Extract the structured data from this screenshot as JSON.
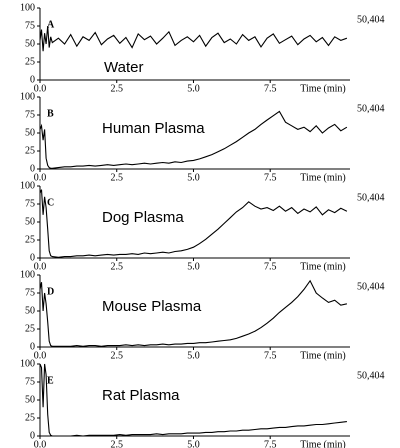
{
  "chart_data": [
    {
      "type": "line",
      "panel": "A",
      "title": "Water",
      "annotation": "50,404",
      "xlabel": "Time (min)",
      "color": "#000000",
      "xlim": [
        0,
        10.1
      ],
      "ylim": [
        0,
        100
      ],
      "yticks": [
        0,
        25,
        50,
        75,
        100
      ],
      "xticks": [
        {
          "value": 0,
          "label": "0.0"
        },
        {
          "value": 2.5,
          "label": "2.5"
        },
        {
          "value": 5,
          "label": "5.0"
        },
        {
          "value": 7.5,
          "label": "7.5"
        }
      ],
      "x": [
        0,
        0.05,
        0.1,
        0.15,
        0.2,
        0.25,
        0.3,
        0.35,
        0.4,
        0.6,
        0.8,
        1.0,
        1.2,
        1.4,
        1.6,
        1.8,
        2.0,
        2.2,
        2.4,
        2.6,
        2.8,
        3.0,
        3.2,
        3.4,
        3.6,
        3.8,
        4.0,
        4.2,
        4.4,
        4.6,
        4.8,
        5.0,
        5.2,
        5.4,
        5.6,
        5.8,
        6.0,
        6.2,
        6.4,
        6.6,
        6.8,
        7.0,
        7.2,
        7.4,
        7.6,
        7.8,
        8.0,
        8.2,
        8.4,
        8.6,
        8.8,
        9.0,
        9.2,
        9.4,
        9.6,
        9.8,
        10.0
      ],
      "values": [
        55,
        70,
        40,
        65,
        50,
        75,
        45,
        60,
        52,
        58,
        50,
        63,
        47,
        60,
        55,
        66,
        49,
        57,
        62,
        51,
        59,
        45,
        64,
        56,
        61,
        50,
        58,
        67,
        48,
        55,
        60,
        53,
        62,
        47,
        59,
        65,
        52,
        57,
        50,
        63,
        55,
        60,
        46,
        58,
        64,
        51,
        56,
        61,
        49,
        57,
        62,
        53,
        59,
        48,
        60,
        55,
        58
      ]
    },
    {
      "type": "line",
      "panel": "B",
      "title": "Human Plasma",
      "annotation": "50,404",
      "xlabel": "Time (min)",
      "color": "#000000",
      "xlim": [
        0,
        10.1
      ],
      "ylim": [
        0,
        100
      ],
      "yticks": [
        0,
        25,
        50,
        75,
        100
      ],
      "xticks": [
        {
          "value": 0,
          "label": "0.0"
        },
        {
          "value": 2.5,
          "label": "2.5"
        },
        {
          "value": 5,
          "label": "5.0"
        },
        {
          "value": 7.5,
          "label": "7.5"
        }
      ],
      "x": [
        0,
        0.05,
        0.1,
        0.15,
        0.2,
        0.25,
        0.3,
        0.35,
        0.4,
        0.6,
        0.8,
        1.0,
        1.2,
        1.4,
        1.6,
        1.8,
        2.0,
        2.2,
        2.4,
        2.6,
        2.8,
        3.0,
        3.2,
        3.4,
        3.6,
        3.8,
        4.0,
        4.2,
        4.4,
        4.6,
        4.8,
        5.0,
        5.2,
        5.4,
        5.6,
        5.8,
        6.0,
        6.2,
        6.4,
        6.6,
        6.8,
        7.0,
        7.2,
        7.4,
        7.6,
        7.8,
        8.0,
        8.2,
        8.4,
        8.6,
        8.8,
        9.0,
        9.2,
        9.4,
        9.6,
        9.8,
        10.0
      ],
      "values": [
        55,
        60,
        40,
        55,
        15,
        5,
        2,
        1,
        1,
        2,
        3,
        3,
        4,
        4,
        5,
        4,
        5,
        6,
        5,
        6,
        7,
        6,
        7,
        8,
        7,
        8,
        9,
        8,
        10,
        9,
        11,
        12,
        14,
        17,
        20,
        24,
        28,
        33,
        38,
        44,
        50,
        55,
        62,
        68,
        74,
        80,
        65,
        60,
        55,
        58,
        52,
        60,
        50,
        57,
        62,
        53,
        58
      ]
    },
    {
      "type": "line",
      "panel": "C",
      "title": "Dog Plasma",
      "annotation": "50,404",
      "xlabel": "Time (min)",
      "color": "#000000",
      "xlim": [
        0,
        10.1
      ],
      "ylim": [
        0,
        100
      ],
      "yticks": [
        0,
        25,
        50,
        75,
        100
      ],
      "xticks": [
        {
          "value": 0,
          "label": "0.0"
        },
        {
          "value": 2.5,
          "label": "2.5"
        },
        {
          "value": 5,
          "label": "5.0"
        },
        {
          "value": 7.5,
          "label": "7.5"
        }
      ],
      "x": [
        0,
        0.05,
        0.1,
        0.15,
        0.2,
        0.25,
        0.3,
        0.35,
        0.4,
        0.6,
        0.8,
        1.0,
        1.2,
        1.4,
        1.6,
        1.8,
        2.0,
        2.2,
        2.4,
        2.6,
        2.8,
        3.0,
        3.2,
        3.4,
        3.6,
        3.8,
        4.0,
        4.2,
        4.4,
        4.6,
        4.8,
        5.0,
        5.2,
        5.4,
        5.6,
        5.8,
        6.0,
        6.2,
        6.4,
        6.6,
        6.8,
        7.0,
        7.2,
        7.4,
        7.6,
        7.8,
        8.0,
        8.2,
        8.4,
        8.6,
        8.8,
        9.0,
        9.2,
        9.4,
        9.6,
        9.8,
        10.0
      ],
      "values": [
        90,
        95,
        60,
        85,
        70,
        40,
        10,
        3,
        2,
        1,
        2,
        2,
        3,
        3,
        4,
        3,
        4,
        5,
        4,
        5,
        5,
        6,
        5,
        7,
        6,
        7,
        8,
        7,
        9,
        10,
        12,
        15,
        20,
        26,
        33,
        40,
        48,
        56,
        64,
        70,
        78,
        72,
        68,
        70,
        66,
        72,
        65,
        70,
        62,
        68,
        64,
        71,
        60,
        67,
        63,
        69,
        65
      ]
    },
    {
      "type": "line",
      "panel": "D",
      "title": "Mouse Plasma",
      "annotation": "50,404",
      "xlabel": "Time (min)",
      "color": "#000000",
      "xlim": [
        0,
        10.1
      ],
      "ylim": [
        0,
        100
      ],
      "yticks": [
        0,
        25,
        50,
        75,
        100
      ],
      "xticks": [
        {
          "value": 0,
          "label": "0.0"
        },
        {
          "value": 2.5,
          "label": "2.5"
        },
        {
          "value": 5,
          "label": "5.0"
        },
        {
          "value": 7.5,
          "label": "7.5"
        }
      ],
      "x": [
        0,
        0.05,
        0.1,
        0.15,
        0.2,
        0.25,
        0.3,
        0.35,
        0.4,
        0.6,
        0.8,
        1.0,
        1.2,
        1.4,
        1.6,
        1.8,
        2.0,
        2.2,
        2.4,
        2.6,
        2.8,
        3.0,
        3.2,
        3.4,
        3.6,
        3.8,
        4.0,
        4.2,
        4.4,
        4.6,
        4.8,
        5.0,
        5.2,
        5.4,
        5.6,
        5.8,
        6.0,
        6.2,
        6.4,
        6.6,
        6.8,
        7.0,
        7.2,
        7.4,
        7.6,
        7.8,
        8.0,
        8.2,
        8.4,
        8.6,
        8.8,
        9.0,
        9.2,
        9.4,
        9.6,
        9.8,
        10.0
      ],
      "values": [
        80,
        90,
        50,
        75,
        60,
        35,
        8,
        2,
        1,
        1,
        1,
        1,
        2,
        1,
        2,
        2,
        1,
        2,
        2,
        2,
        3,
        2,
        3,
        2,
        3,
        3,
        4,
        3,
        4,
        4,
        5,
        5,
        6,
        6,
        7,
        8,
        9,
        10,
        12,
        15,
        18,
        22,
        27,
        33,
        40,
        48,
        55,
        62,
        70,
        80,
        92,
        75,
        68,
        62,
        65,
        58,
        60
      ]
    },
    {
      "type": "line",
      "panel": "E",
      "title": "Rat Plasma",
      "annotation": "50,404",
      "xlabel": "Time (min)",
      "color": "#000000",
      "xlim": [
        0,
        10.1
      ],
      "ylim": [
        0,
        100
      ],
      "yticks": [
        0,
        25,
        50,
        75,
        100
      ],
      "xticks": [
        {
          "value": 0,
          "label": "0.0"
        },
        {
          "value": 2.5,
          "label": "2.5"
        },
        {
          "value": 5,
          "label": "5.0"
        },
        {
          "value": 7.5,
          "label": "7.5"
        }
      ],
      "x": [
        0,
        0.05,
        0.1,
        0.15,
        0.2,
        0.25,
        0.3,
        0.35,
        0.4,
        0.6,
        0.8,
        1.0,
        1.2,
        1.4,
        1.6,
        1.8,
        2.0,
        2.2,
        2.4,
        2.6,
        2.8,
        3.0,
        3.2,
        3.4,
        3.6,
        3.8,
        4.0,
        4.2,
        4.4,
        4.6,
        4.8,
        5.0,
        5.2,
        5.4,
        5.6,
        5.8,
        6.0,
        6.2,
        6.4,
        6.6,
        6.8,
        7.0,
        7.2,
        7.4,
        7.6,
        7.8,
        8.0,
        8.2,
        8.4,
        8.6,
        8.8,
        9.0,
        9.2,
        9.4,
        9.6,
        9.8,
        10.0
      ],
      "values": [
        100,
        95,
        40,
        100,
        85,
        30,
        5,
        1,
        0,
        0,
        0,
        0,
        1,
        0,
        1,
        1,
        1,
        1,
        1,
        2,
        1,
        2,
        2,
        2,
        2,
        3,
        2,
        3,
        3,
        3,
        4,
        4,
        4,
        5,
        5,
        6,
        6,
        7,
        7,
        8,
        8,
        9,
        10,
        10,
        11,
        12,
        12,
        13,
        14,
        14,
        15,
        16,
        16,
        17,
        18,
        19,
        20
      ]
    }
  ]
}
